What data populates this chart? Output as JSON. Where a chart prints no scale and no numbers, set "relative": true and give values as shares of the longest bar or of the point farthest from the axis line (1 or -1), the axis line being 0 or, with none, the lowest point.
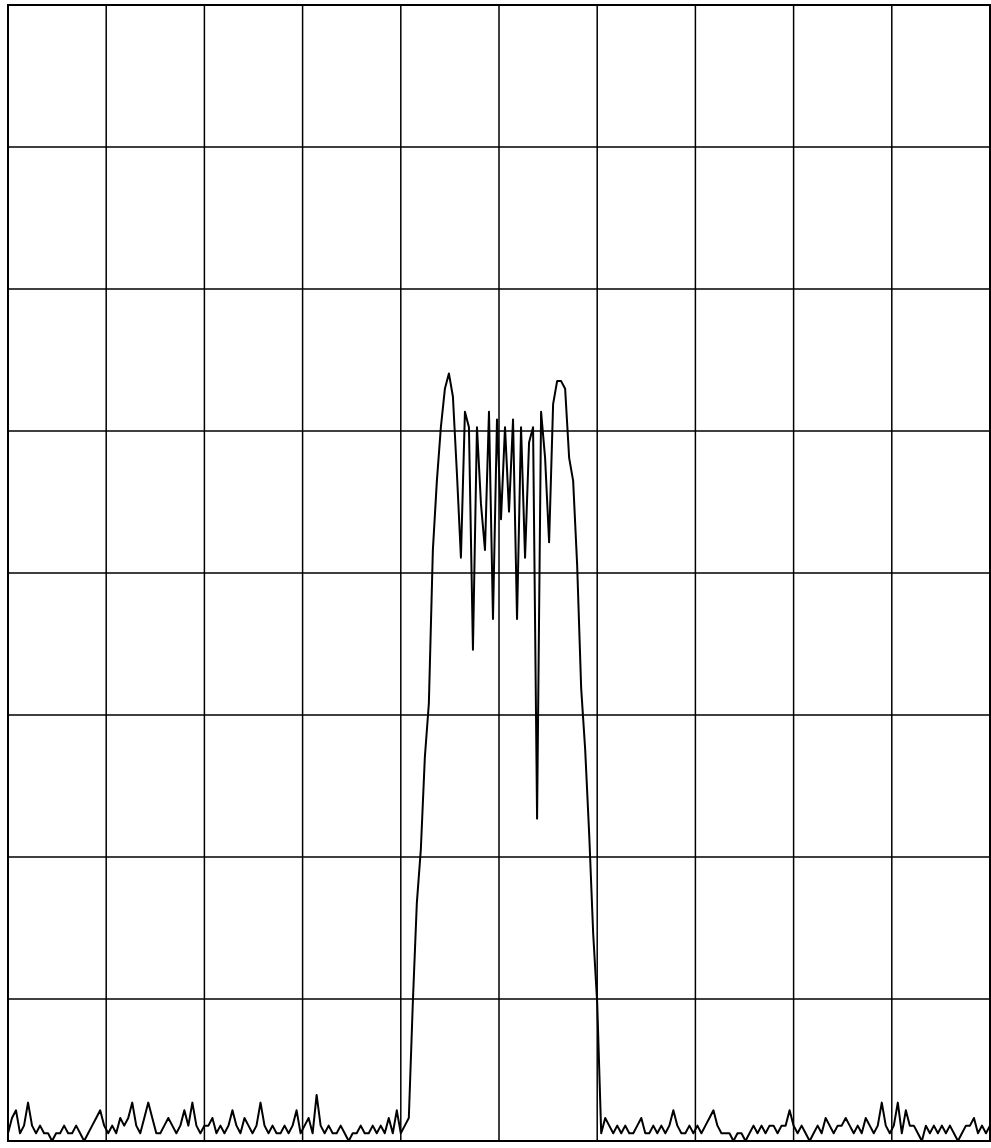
{
  "chart_data": {
    "type": "line",
    "relative": true,
    "grid": true,
    "marker": "none",
    "line_style": "solid",
    "categories": [
      null,
      null,
      null,
      null,
      null,
      null,
      null,
      null,
      null,
      null,
      null,
      null,
      null,
      null,
      null,
      null,
      null,
      null,
      null,
      null,
      null,
      null,
      null,
      null,
      null,
      null,
      null,
      null,
      null,
      null,
      null,
      null,
      null,
      null,
      null,
      null,
      null,
      null,
      null,
      null,
      null,
      null,
      null,
      null,
      null,
      null,
      null,
      null,
      null,
      null,
      null,
      null,
      null,
      null,
      null,
      null,
      null,
      null,
      null,
      null,
      null,
      null,
      null,
      null,
      null,
      null,
      null,
      null,
      null,
      null,
      null,
      null,
      null,
      null,
      null,
      null,
      null,
      null,
      null,
      null,
      null,
      null,
      null,
      null,
      null,
      null,
      null,
      null,
      null,
      null,
      null,
      null,
      null,
      null,
      null,
      null,
      null,
      null,
      null,
      null,
      null,
      null,
      null,
      null,
      null,
      null,
      null,
      null,
      null,
      null,
      null,
      null,
      null,
      null,
      null,
      null,
      null,
      null,
      null,
      null,
      null,
      null,
      null,
      null,
      null,
      null,
      null,
      null,
      null,
      null,
      null,
      null,
      null,
      null,
      null,
      null,
      null,
      null,
      null,
      null,
      null,
      null,
      null,
      null,
      null,
      null,
      null,
      null,
      null,
      null,
      null,
      null,
      null,
      null,
      null,
      null,
      null,
      null,
      null,
      null,
      null,
      null,
      null,
      null,
      null,
      null,
      null,
      null,
      null,
      null,
      null,
      null,
      null,
      null,
      null,
      null,
      null,
      null,
      null,
      null,
      null,
      null,
      null,
      null,
      null,
      null,
      null,
      null,
      null,
      null,
      null,
      null,
      null,
      null,
      null,
      null,
      null,
      null,
      null,
      null,
      null,
      null,
      null,
      null,
      null,
      null,
      null,
      null,
      null,
      null,
      null,
      null,
      null,
      null,
      null,
      null,
      null,
      null,
      null,
      null,
      null,
      null,
      null,
      null,
      null,
      null,
      null,
      null,
      null,
      null,
      null,
      null,
      null,
      null,
      null,
      null,
      null,
      null,
      null,
      null,
      null,
      null,
      null,
      null,
      null,
      null
    ],
    "series": [
      {
        "color": "#000000",
        "values": [
          0.01,
          0.03,
          0.04,
          0.01,
          0.02,
          0.05,
          0.02,
          0.01,
          0.02,
          0.01,
          0.01,
          0.0,
          0.01,
          0.01,
          0.02,
          0.01,
          0.01,
          0.02,
          0.01,
          0.0,
          0.01,
          0.02,
          0.03,
          0.04,
          0.02,
          0.01,
          0.02,
          0.01,
          0.03,
          0.02,
          0.03,
          0.05,
          0.02,
          0.01,
          0.03,
          0.05,
          0.03,
          0.01,
          0.01,
          0.02,
          0.03,
          0.02,
          0.01,
          0.02,
          0.04,
          0.02,
          0.05,
          0.02,
          0.01,
          0.02,
          0.02,
          0.03,
          0.01,
          0.02,
          0.01,
          0.02,
          0.04,
          0.02,
          0.01,
          0.03,
          0.02,
          0.01,
          0.02,
          0.05,
          0.02,
          0.01,
          0.02,
          0.01,
          0.01,
          0.02,
          0.01,
          0.02,
          0.04,
          0.01,
          0.02,
          0.03,
          0.01,
          0.06,
          0.02,
          0.01,
          0.02,
          0.01,
          0.01,
          0.02,
          0.01,
          0.0,
          0.01,
          0.01,
          0.02,
          0.01,
          0.01,
          0.02,
          0.01,
          0.02,
          0.01,
          0.03,
          0.01,
          0.04,
          0.01,
          0.02,
          0.03,
          0.18,
          0.31,
          0.38,
          0.5,
          0.57,
          0.77,
          0.86,
          0.93,
          0.98,
          1.0,
          0.97,
          0.87,
          0.76,
          0.95,
          0.93,
          0.64,
          0.93,
          0.83,
          0.77,
          0.95,
          0.68,
          0.94,
          0.81,
          0.93,
          0.82,
          0.94,
          0.68,
          0.93,
          0.76,
          0.91,
          0.93,
          0.42,
          0.95,
          0.89,
          0.78,
          0.96,
          0.99,
          0.99,
          0.98,
          0.89,
          0.86,
          0.75,
          0.59,
          0.51,
          0.4,
          0.27,
          0.18,
          0.01,
          0.03,
          0.02,
          0.01,
          0.02,
          0.01,
          0.02,
          0.01,
          0.01,
          0.02,
          0.03,
          0.01,
          0.01,
          0.02,
          0.01,
          0.02,
          0.01,
          0.02,
          0.04,
          0.02,
          0.01,
          0.01,
          0.02,
          0.01,
          0.02,
          0.01,
          0.02,
          0.03,
          0.04,
          0.02,
          0.01,
          0.01,
          0.01,
          0.0,
          0.01,
          0.01,
          0.0,
          0.01,
          0.02,
          0.01,
          0.02,
          0.01,
          0.02,
          0.02,
          0.01,
          0.02,
          0.02,
          0.04,
          0.02,
          0.01,
          0.02,
          0.01,
          0.0,
          0.01,
          0.02,
          0.01,
          0.03,
          0.02,
          0.01,
          0.02,
          0.02,
          0.03,
          0.02,
          0.01,
          0.02,
          0.01,
          0.03,
          0.02,
          0.01,
          0.02,
          0.05,
          0.02,
          0.01,
          0.02,
          0.05,
          0.01,
          0.04,
          0.02,
          0.02,
          0.01,
          0.0,
          0.02,
          0.01,
          0.02,
          0.01,
          0.02,
          0.01,
          0.02,
          0.01,
          0.0,
          0.01,
          0.02,
          0.02,
          0.03,
          0.01,
          0.02,
          0.01,
          0.02
        ]
      }
    ]
  }
}
